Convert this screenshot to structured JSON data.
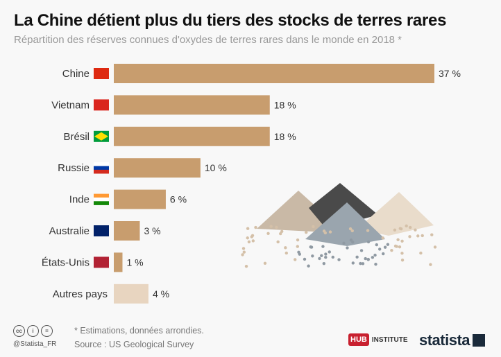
{
  "header": {
    "title": "La Chine détient plus du tiers des stocks de terres rares",
    "subtitle": "Répartition des réserves connues d'oxydes de terres rares dans le monde en 2018 *"
  },
  "chart_data": {
    "type": "bar",
    "orientation": "horizontal",
    "categories": [
      "Chine",
      "Vietnam",
      "Brésil",
      "Russie",
      "Inde",
      "Australie",
      "États-Unis",
      "Autres pays"
    ],
    "values": [
      37,
      18,
      18,
      10,
      6,
      3,
      1,
      4
    ],
    "labels": [
      "37 %",
      "18 %",
      "18 %",
      "10 %",
      "6 %",
      "3 %",
      "1 %",
      "4 %"
    ],
    "unit": "%",
    "xlim": [
      0,
      37
    ],
    "grid": false,
    "colors": {
      "main": "#c89d6e",
      "other": "#e8d5c0"
    }
  },
  "footer": {
    "note": "* Estimations, données arrondies.",
    "source": "Source : US Geological Survey",
    "handle": "@Statista_FR",
    "hub_logo": "HUB",
    "hub_text": "INSTITUTE",
    "brand": "statista"
  }
}
